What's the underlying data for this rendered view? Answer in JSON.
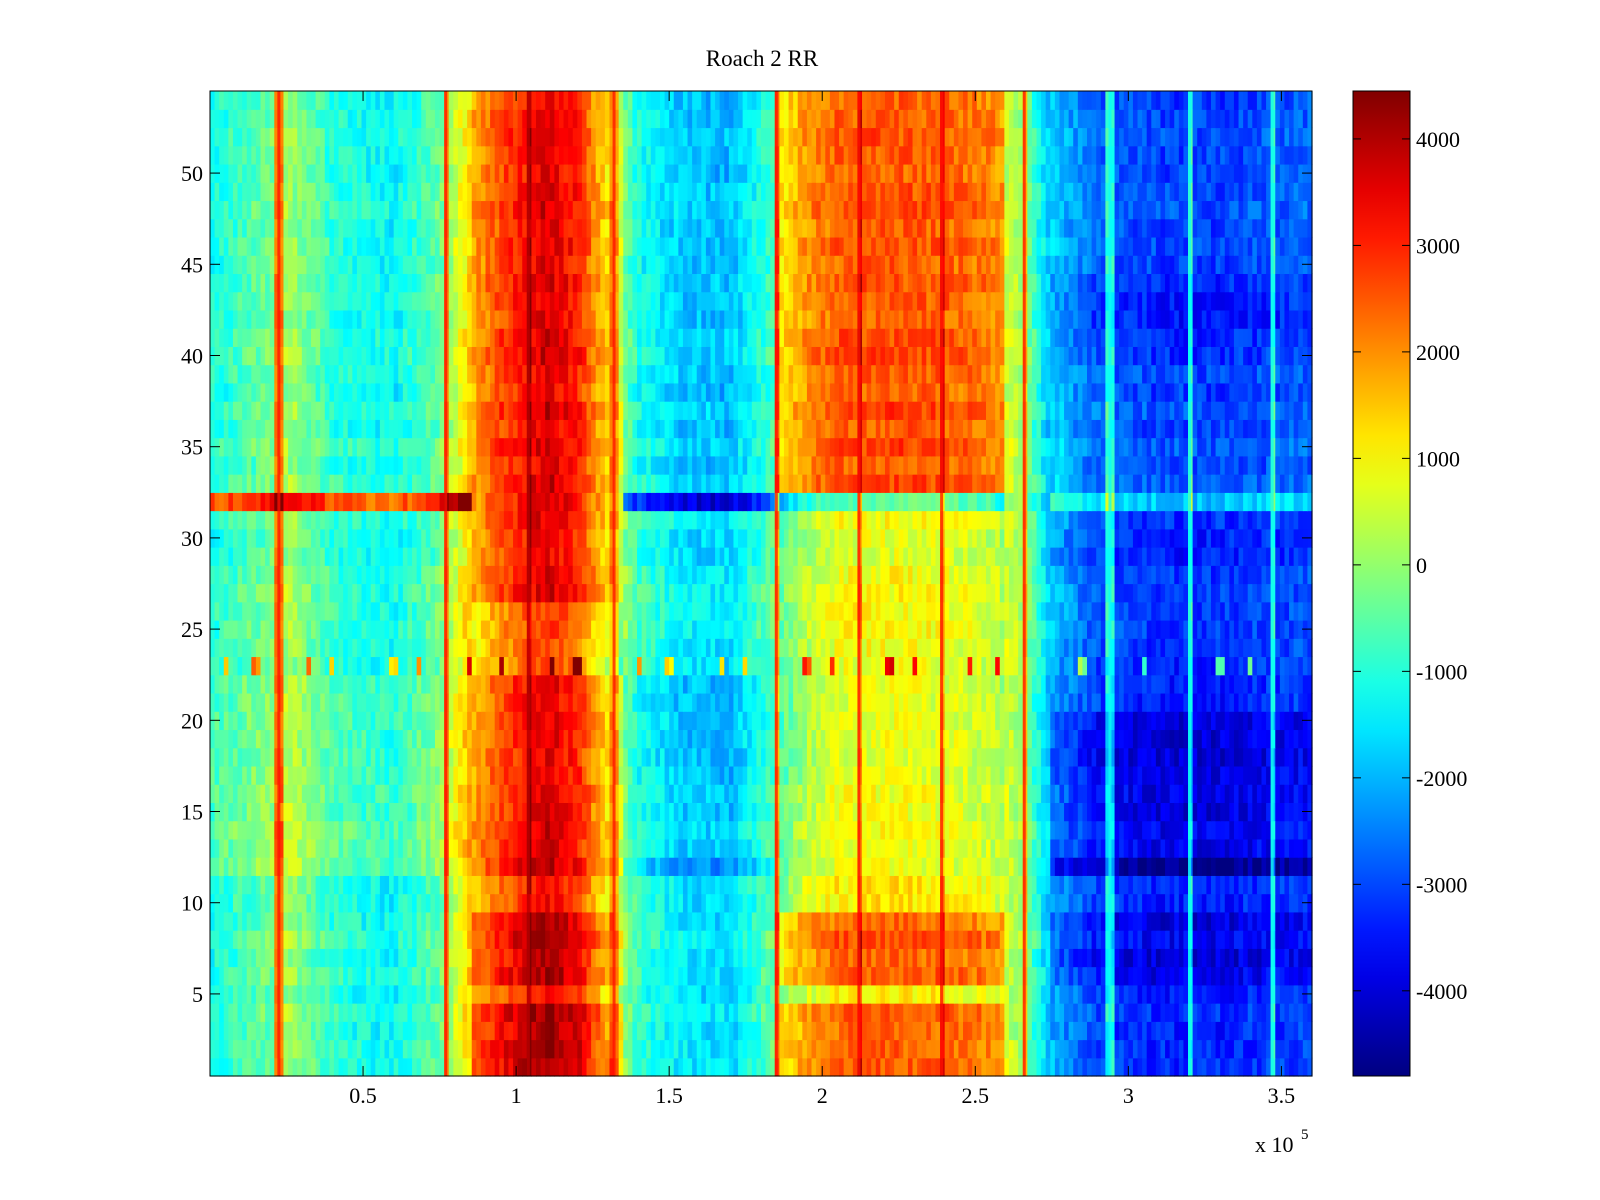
{
  "chart_data": {
    "type": "heatmap",
    "title": "Roach 2 RR",
    "xlabel": "",
    "ylabel": "",
    "x_multiplier_label": "x 10",
    "x_multiplier_exponent": "5",
    "xlim": [
      0,
      3.6
    ],
    "ylim": [
      0.5,
      54.5
    ],
    "x_ticks": [
      0.5,
      1,
      1.5,
      2,
      2.5,
      3,
      3.5
    ],
    "x_tick_labels": [
      "0.5",
      "1",
      "1.5",
      "2",
      "2.5",
      "3",
      "3.5"
    ],
    "y_ticks": [
      5,
      10,
      15,
      20,
      25,
      30,
      35,
      40,
      45,
      50
    ],
    "y_tick_labels": [
      "5",
      "10",
      "15",
      "20",
      "25",
      "30",
      "35",
      "40",
      "45",
      "50"
    ],
    "rows": 54,
    "colorbar": {
      "colormap": "jet",
      "clim": [
        -4800,
        4450
      ],
      "ticks": [
        4000,
        3000,
        2000,
        1000,
        0,
        -1000,
        -2000,
        -3000,
        -4000
      ],
      "tick_labels": [
        "4000",
        "3000",
        "2000",
        "1000",
        "0",
        "-1000",
        "-2000",
        "-3000",
        "-4000"
      ]
    },
    "column_profile": {
      "x": [
        0,
        0.2,
        0.25,
        0.4,
        0.6,
        0.75,
        0.85,
        0.95,
        1.1,
        1.2,
        1.3,
        1.4,
        1.55,
        1.7,
        1.85,
        1.95,
        2.05,
        2.2,
        2.4,
        2.55,
        2.65,
        2.75,
        2.9,
        3.1,
        3.3,
        3.6
      ],
      "base": [
        -1100,
        -300,
        200,
        -900,
        -1300,
        -400,
        1400,
        2400,
        3400,
        2800,
        1000,
        -800,
        -1500,
        -1600,
        -300,
        700,
        1200,
        1300,
        1200,
        900,
        200,
        -2000,
        -3000,
        -3300,
        -3300,
        -3000
      ]
    },
    "band_amplitudes": [
      {
        "x": [
          0.85,
          1.35
        ],
        "rows": [
          [
            1,
            4,
            900
          ],
          [
            6,
            9,
            700
          ],
          [
            12,
            12,
            600
          ],
          [
            13,
            22,
            300
          ],
          [
            23,
            26,
            -600
          ],
          [
            27,
            31,
            200
          ],
          [
            32,
            32,
            400
          ],
          [
            33,
            54,
            300
          ]
        ]
      },
      {
        "x": [
          1.85,
          2.6
        ],
        "rows": [
          [
            1,
            4,
            1200
          ],
          [
            6,
            9,
            1200
          ],
          [
            10,
            11,
            0
          ],
          [
            12,
            12,
            -500
          ],
          [
            13,
            31,
            -400
          ],
          [
            32,
            32,
            -1600
          ],
          [
            33,
            54,
            1300
          ]
        ]
      },
      {
        "x": [
          1.35,
          1.85
        ],
        "rows": [
          [
            1,
            11,
            0
          ],
          [
            12,
            12,
            -800
          ],
          [
            13,
            22,
            -300
          ],
          [
            32,
            32,
            -2400
          ],
          [
            33,
            54,
            -300
          ]
        ]
      },
      {
        "x": [
          2.75,
          3.6
        ],
        "rows": [
          [
            1,
            5,
            0
          ],
          [
            6,
            9,
            -600
          ],
          [
            12,
            12,
            -1400
          ],
          [
            13,
            20,
            -600
          ],
          [
            21,
            31,
            0
          ],
          [
            32,
            32,
            1500
          ],
          [
            40,
            44,
            -400
          ],
          [
            33,
            54,
            300
          ]
        ]
      },
      {
        "x": [
          0,
          0.85
        ],
        "rows": [
          [
            12,
            12,
            500
          ],
          [
            13,
            22,
            400
          ],
          [
            23,
            26,
            0
          ],
          [
            32,
            32,
            3600
          ]
        ]
      }
    ],
    "vertical_streaks": [
      {
        "x": 0.225,
        "delta": 3200
      },
      {
        "x": 0.77,
        "delta": 3000
      },
      {
        "x": 1.04,
        "delta": 1600
      },
      {
        "x": 1.32,
        "delta": 1800
      },
      {
        "x": 1.85,
        "delta": 3000
      },
      {
        "x": 2.12,
        "delta": 2000
      },
      {
        "x": 2.39,
        "delta": 1600
      },
      {
        "x": 2.66,
        "delta": 2400
      },
      {
        "x": 2.94,
        "delta": 2400
      },
      {
        "x": 3.2,
        "delta": 2800
      },
      {
        "x": 3.47,
        "delta": 2600
      }
    ],
    "spike_row": 23,
    "spike_x": [
      0.05,
      0.15,
      0.32,
      0.4,
      0.6,
      0.68,
      0.85,
      0.95,
      1.12,
      1.2,
      1.4,
      1.5,
      1.67,
      1.75,
      1.95,
      2.03,
      2.22,
      2.3,
      2.48,
      2.57,
      2.85,
      3.05,
      3.3,
      3.4
    ],
    "seed": 20240517
  }
}
